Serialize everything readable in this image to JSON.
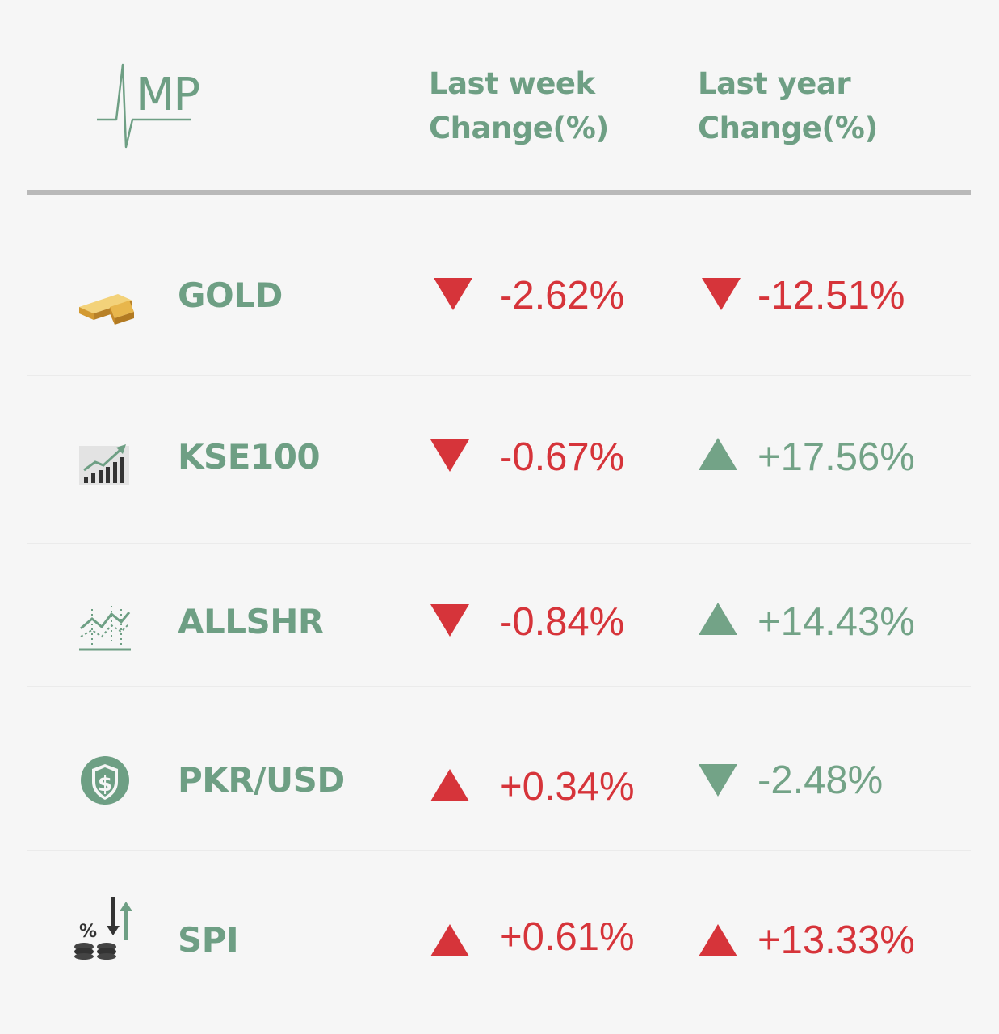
{
  "logo": {
    "text": "MP"
  },
  "headers": {
    "last_week": [
      "Last week",
      "Change(%)"
    ],
    "last_year": [
      "Last year",
      "Change(%)"
    ]
  },
  "colors": {
    "green": "#73a387",
    "red": "#d6343a",
    "header_green": "#6e9f84"
  },
  "rows": [
    {
      "name": "GOLD",
      "icon": "gold-bars-icon",
      "week": {
        "value": "-2.62%",
        "direction": "down",
        "color": "red"
      },
      "year": {
        "value": "-12.51%",
        "direction": "down",
        "color": "red"
      }
    },
    {
      "name": "KSE100",
      "icon": "bar-chart-growth-icon",
      "week": {
        "value": "-0.67%",
        "direction": "down",
        "color": "red"
      },
      "year": {
        "value": "+17.56%",
        "direction": "up",
        "color": "green"
      }
    },
    {
      "name": "ALLSHR",
      "icon": "line-chart-icon",
      "week": {
        "value": "-0.84%",
        "direction": "down",
        "color": "red"
      },
      "year": {
        "value": "+14.43%",
        "direction": "up",
        "color": "green"
      }
    },
    {
      "name": "PKR/USD",
      "icon": "dollar-shield-icon",
      "week": {
        "value": "+0.34%",
        "direction": "up",
        "color": "red"
      },
      "year": {
        "value": "-2.48%",
        "direction": "down",
        "color": "green"
      }
    },
    {
      "name": "SPI",
      "icon": "percent-coins-icon",
      "week": {
        "value": "+0.61%",
        "direction": "up",
        "color": "red"
      },
      "year": {
        "value": "+13.33%",
        "direction": "up",
        "color": "red"
      }
    }
  ]
}
